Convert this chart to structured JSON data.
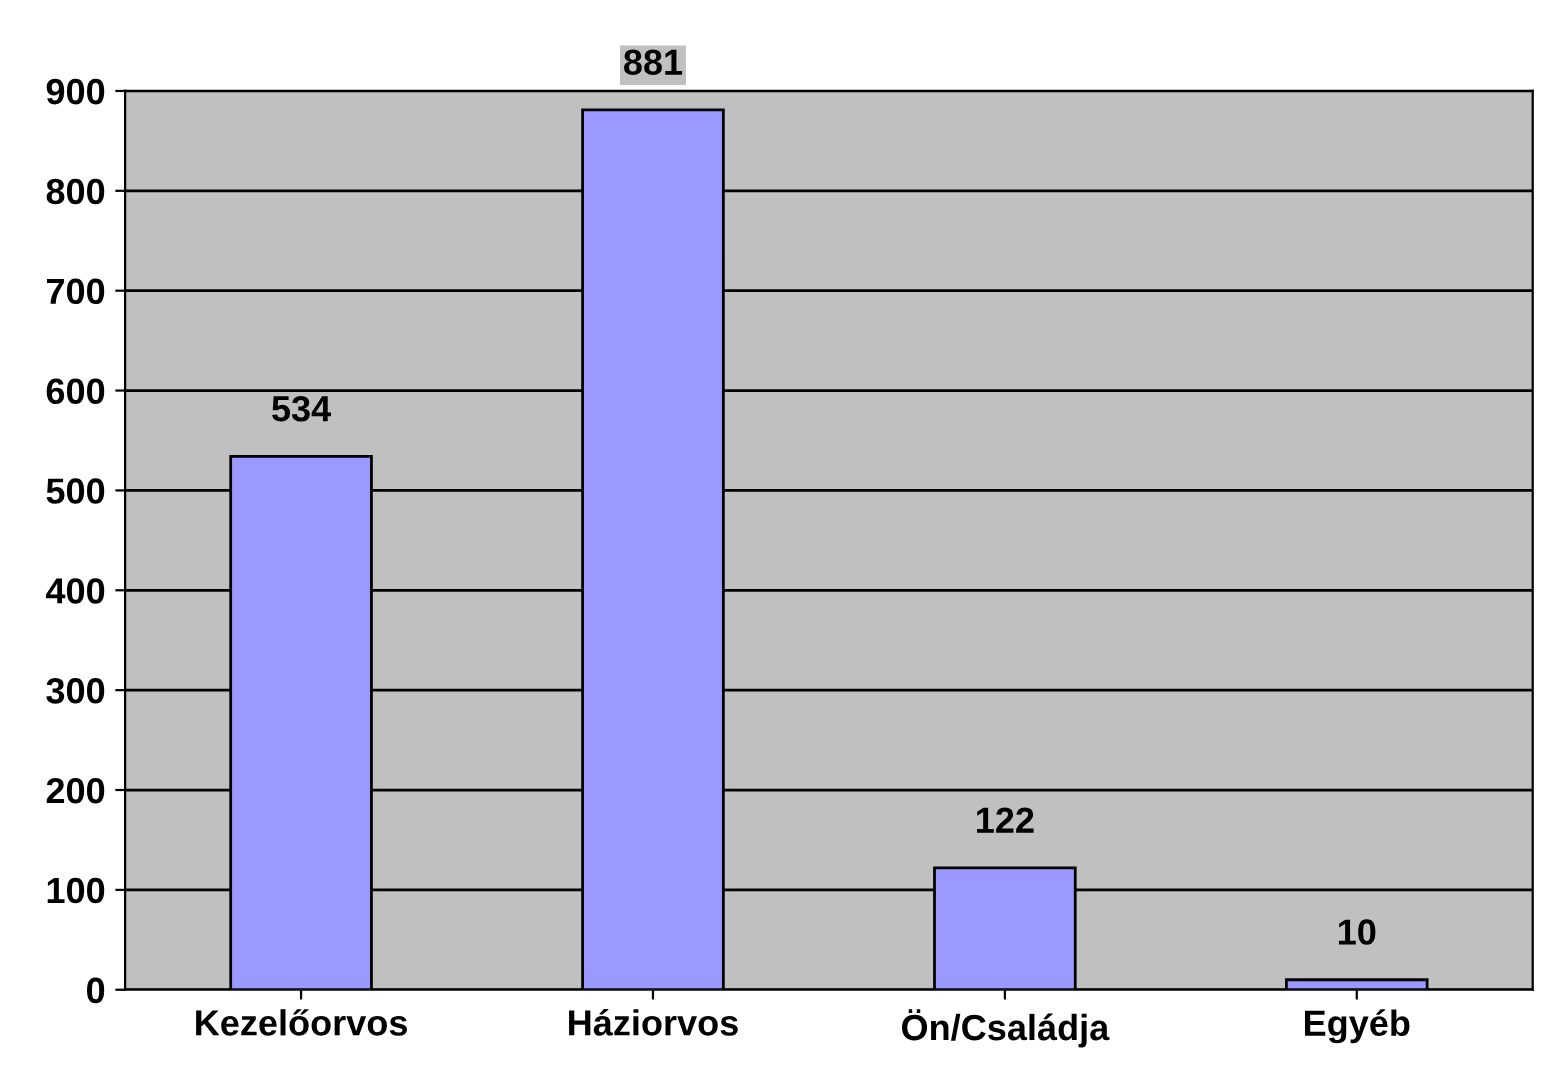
{
  "chart_data": {
    "type": "bar",
    "categories": [
      "Kezelőorvos",
      "Háziorvos",
      "Ön/Családja",
      "Egyéb"
    ],
    "values": [
      534,
      881,
      122,
      10
    ],
    "color": "#9999ff",
    "ylim": [
      0,
      900
    ],
    "yticks": [
      0,
      100,
      200,
      300,
      400,
      500,
      600,
      700,
      800,
      900
    ],
    "grid": "y",
    "data_labels": true,
    "legend": false
  }
}
